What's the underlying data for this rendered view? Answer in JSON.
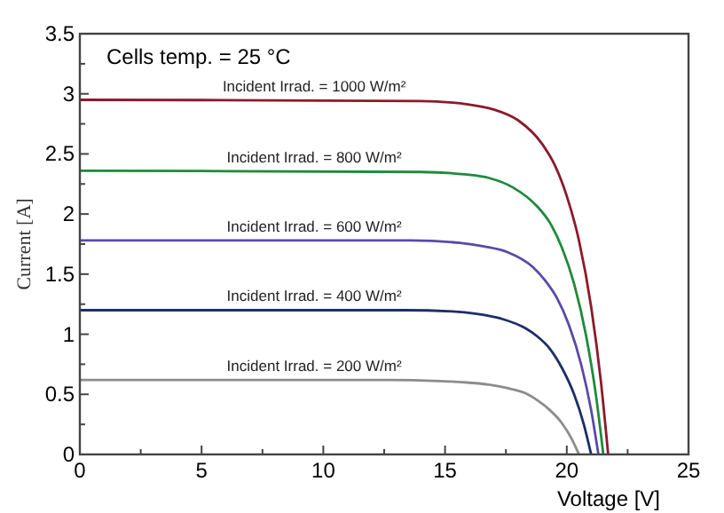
{
  "chart_data": {
    "type": "line",
    "xlabel": "Voltage [V]",
    "ylabel": "Current [A]",
    "annotations": [
      "Cells temp. = 25 °C"
    ],
    "xlim": [
      0,
      25
    ],
    "ylim": [
      0,
      3.5
    ],
    "xticks": [
      0,
      {
        "value": 2.5,
        "label": null
      },
      5,
      {
        "value": 7.5,
        "label": null
      },
      10,
      {
        "value": 12.5,
        "label": null
      },
      15,
      {
        "value": 17.5,
        "label": null
      },
      20,
      {
        "value": 22.5,
        "label": null
      },
      25
    ],
    "yticks": [
      0,
      {
        "value": 0.25,
        "label": null
      },
      0.5,
      {
        "value": 0.75,
        "label": null
      },
      1,
      {
        "value": 1.25,
        "label": null
      },
      1.5,
      {
        "value": 1.75,
        "label": null
      },
      2,
      {
        "value": 2.25,
        "label": null
      },
      2.5,
      {
        "value": 2.75,
        "label": null
      },
      3,
      {
        "value": 3.25,
        "label": null
      },
      3.5
    ],
    "grid": false,
    "legend": false,
    "marker": "none",
    "line_style": "solid",
    "series": [
      {
        "name": "Incident Irrad. = 1000 W/m²",
        "color": "#8b1a2a",
        "x": [
          0,
          14,
          16,
          17,
          18,
          19,
          19.5,
          20,
          20.5,
          21,
          21.4,
          21.7
        ],
        "values": [
          2.95,
          2.94,
          2.91,
          2.87,
          2.78,
          2.58,
          2.41,
          2.15,
          1.78,
          1.23,
          0.61,
          0
        ]
      },
      {
        "name": "Incident Irrad. = 800 W/m²",
        "color": "#1f8a3c",
        "x": [
          0,
          14,
          15.8,
          16.8,
          17.8,
          18.8,
          19.3,
          19.8,
          20.3,
          20.8,
          21.2,
          21.5
        ],
        "values": [
          2.36,
          2.35,
          2.33,
          2.3,
          2.22,
          2.06,
          1.93,
          1.72,
          1.42,
          0.98,
          0.49,
          0
        ]
      },
      {
        "name": "Incident Irrad. = 600 W/m²",
        "color": "#5a4aa8",
        "x": [
          0,
          13.6,
          15.6,
          16.6,
          17.6,
          18.6,
          19.1,
          19.6,
          20.1,
          20.6,
          21,
          21.3
        ],
        "values": [
          1.78,
          1.78,
          1.76,
          1.73,
          1.68,
          1.56,
          1.45,
          1.3,
          1.07,
          0.74,
          0.37,
          0
        ]
      },
      {
        "name": "Incident Irrad. = 400 W/m²",
        "color": "#1c2e66",
        "x": [
          0,
          13.3,
          15.3,
          16.3,
          17.3,
          18.3,
          18.8,
          19.3,
          19.8,
          20.3,
          20.7,
          21
        ],
        "values": [
          1.2,
          1.2,
          1.19,
          1.17,
          1.13,
          1.05,
          0.98,
          0.88,
          0.72,
          0.5,
          0.25,
          0
        ]
      },
      {
        "name": "Incident Irrad. = 200 W/m²",
        "color": "#8c8c8c",
        "x": [
          0,
          12.8,
          14.8,
          15.8,
          16.8,
          17.8,
          18.3,
          18.8,
          19.3,
          19.8,
          20.2,
          20.5
        ],
        "values": [
          0.62,
          0.62,
          0.61,
          0.6,
          0.58,
          0.54,
          0.51,
          0.45,
          0.37,
          0.26,
          0.13,
          0
        ]
      }
    ]
  }
}
